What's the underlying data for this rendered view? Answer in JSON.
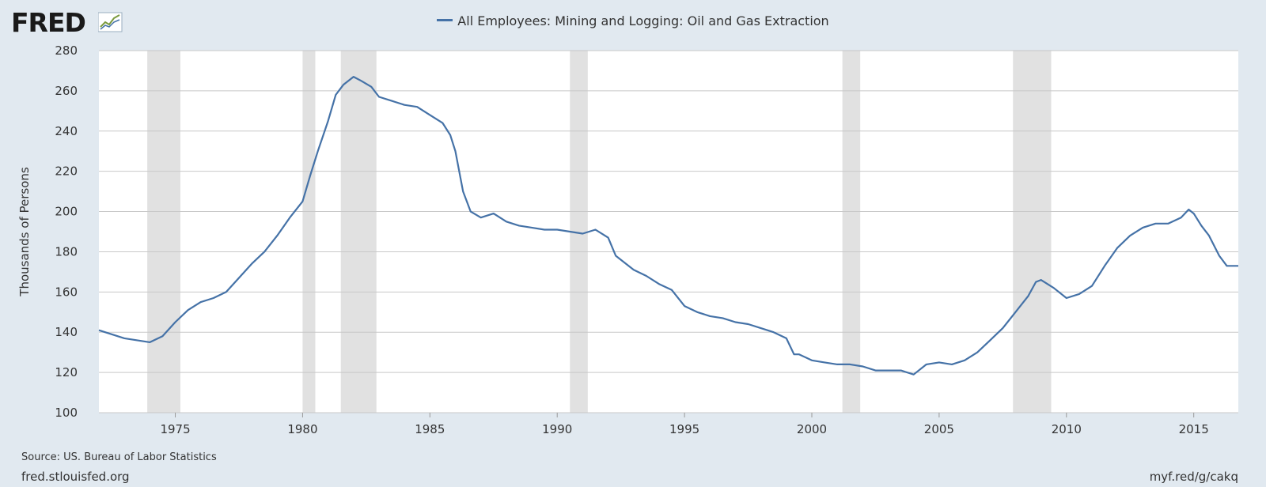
{
  "brand": {
    "name": "FRED"
  },
  "footer": {
    "source": "Source: US. Bureau of Labor Statistics",
    "site": "fred.stlouisfed.org",
    "short_url": "myf.red/g/cakq"
  },
  "colors": {
    "line": "#4572a7",
    "recession": "#e1e1e1",
    "grid": "#c8c8c8",
    "page_bg": "#e1e9f0"
  },
  "chart_data": {
    "type": "line",
    "title": "",
    "xlabel": "",
    "ylabel": "Thousands of Persons",
    "xlim": [
      1972.0,
      2016.75
    ],
    "ylim": [
      100,
      280
    ],
    "grid": true,
    "legend_position": "top-center",
    "x_ticks": [
      1975,
      1980,
      1985,
      1990,
      1995,
      2000,
      2005,
      2010,
      2015
    ],
    "x_tick_labels": [
      "1975",
      "1980",
      "1985",
      "1990",
      "1995",
      "2000",
      "2005",
      "2010",
      "2015"
    ],
    "y_ticks": [
      100,
      120,
      140,
      160,
      180,
      200,
      220,
      240,
      260,
      280
    ],
    "y_tick_labels": [
      "100",
      "120",
      "140",
      "160",
      "180",
      "200",
      "220",
      "240",
      "260",
      "280"
    ],
    "recessions": [
      [
        1973.9,
        1975.2
      ],
      [
        1980.0,
        1980.5
      ],
      [
        1981.5,
        1982.9
      ],
      [
        1990.5,
        1991.2
      ],
      [
        2001.2,
        2001.9
      ],
      [
        2007.9,
        2009.4
      ]
    ],
    "series": [
      {
        "name": "All Employees: Mining and Logging: Oil and Gas Extraction",
        "x": [
          1972.0,
          1972.5,
          1973.0,
          1973.5,
          1974.0,
          1974.5,
          1975.0,
          1975.5,
          1976.0,
          1976.5,
          1977.0,
          1977.5,
          1978.0,
          1978.5,
          1979.0,
          1979.5,
          1980.0,
          1980.3,
          1980.6,
          1981.0,
          1981.3,
          1981.6,
          1982.0,
          1982.3,
          1982.7,
          1983.0,
          1983.5,
          1984.0,
          1984.5,
          1985.0,
          1985.5,
          1985.8,
          1986.0,
          1986.3,
          1986.6,
          1987.0,
          1987.5,
          1988.0,
          1988.5,
          1989.0,
          1989.5,
          1990.0,
          1990.5,
          1991.0,
          1991.5,
          1992.0,
          1992.3,
          1992.5,
          1993.0,
          1993.5,
          1994.0,
          1994.5,
          1995.0,
          1995.5,
          1996.0,
          1996.5,
          1997.0,
          1997.5,
          1998.0,
          1998.5,
          1999.0,
          1999.3,
          1999.5,
          2000.0,
          2000.5,
          2001.0,
          2001.5,
          2002.0,
          2002.5,
          2003.0,
          2003.5,
          2004.0,
          2004.5,
          2005.0,
          2005.5,
          2006.0,
          2006.5,
          2007.0,
          2007.5,
          2008.0,
          2008.5,
          2008.8,
          2009.0,
          2009.5,
          2010.0,
          2010.5,
          2011.0,
          2011.5,
          2012.0,
          2012.5,
          2013.0,
          2013.5,
          2014.0,
          2014.5,
          2014.8,
          2015.0,
          2015.3,
          2015.6,
          2016.0,
          2016.3,
          2016.75
        ],
        "values": [
          141,
          139,
          137,
          136,
          135,
          138,
          145,
          151,
          155,
          157,
          160,
          167,
          174,
          180,
          188,
          197,
          205,
          218,
          230,
          245,
          258,
          263,
          267,
          265,
          262,
          257,
          255,
          253,
          252,
          248,
          244,
          238,
          230,
          210,
          200,
          197,
          199,
          195,
          193,
          192,
          191,
          191,
          190,
          189,
          191,
          187,
          178,
          176,
          171,
          168,
          164,
          161,
          153,
          150,
          148,
          147,
          145,
          144,
          142,
          140,
          137,
          129,
          129,
          126,
          125,
          124,
          124,
          123,
          121,
          121,
          121,
          119,
          124,
          125,
          124,
          126,
          130,
          136,
          142,
          150,
          158,
          165,
          166,
          162,
          157,
          159,
          163,
          173,
          182,
          188,
          192,
          194,
          194,
          197,
          201,
          199,
          193,
          188,
          178,
          173,
          173
        ]
      }
    ]
  }
}
